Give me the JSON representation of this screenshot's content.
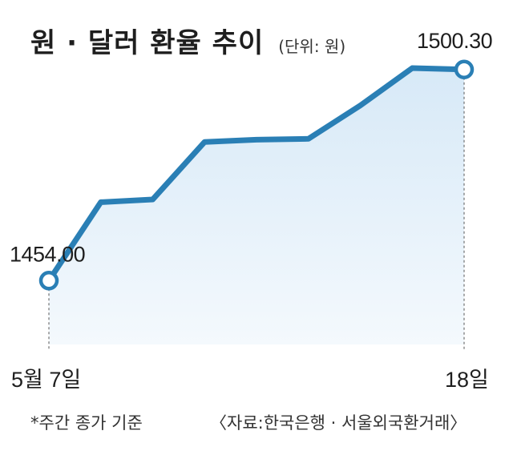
{
  "title": "원 · 달러 환율 추이",
  "unit": "(단위: 원)",
  "footnote": "*주간 종가 기준",
  "source": "〈자료:한국은행 · 서울외국환거래〉",
  "colors": {
    "line": "#2a7fb5",
    "fill_top": "#d7e9f7",
    "fill_bottom": "#f4f9fd",
    "guide": "#555555"
  },
  "chart_data": {
    "type": "area",
    "x_labels": {
      "start": "5월 7일",
      "end": "18일"
    },
    "values": [
      1454.0,
      1471.2,
      1471.8,
      1484.4,
      1484.9,
      1485.1,
      1492.4,
      1500.6,
      1500.3
    ],
    "annotations": {
      "start": "1454.00",
      "end": "1500.30"
    },
    "ylim": [
      1440,
      1505
    ]
  }
}
